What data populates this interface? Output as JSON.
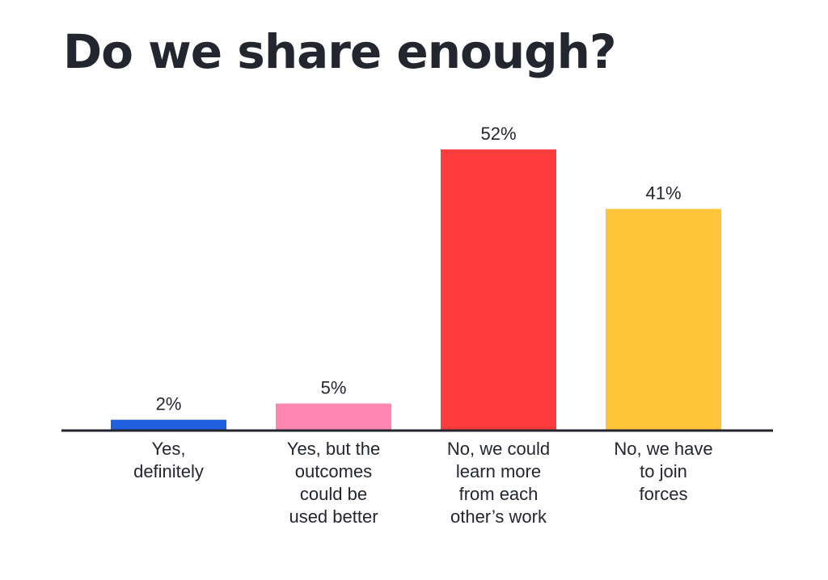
{
  "chart_data": {
    "type": "bar",
    "title": "Do we share enough?",
    "categories": [
      [
        "Yes,",
        "definitely"
      ],
      [
        "Yes, but the",
        "outcomes",
        "could be",
        "used better"
      ],
      [
        "No, we could",
        "learn more",
        "from each",
        "other’s work"
      ],
      [
        "No, we have",
        "to join",
        "forces"
      ]
    ],
    "values": [
      2,
      5,
      52,
      41
    ],
    "value_labels": [
      "2%",
      "5%",
      "52%",
      "41%"
    ],
    "colors": [
      "#1f5fe0",
      "#ff86b0",
      "#ff3c3c",
      "#ffc43a"
    ],
    "axis_color": "#23262e",
    "ylim": [
      0,
      52
    ],
    "xlabel": "",
    "ylabel": "",
    "grid": false,
    "legend": "none"
  }
}
